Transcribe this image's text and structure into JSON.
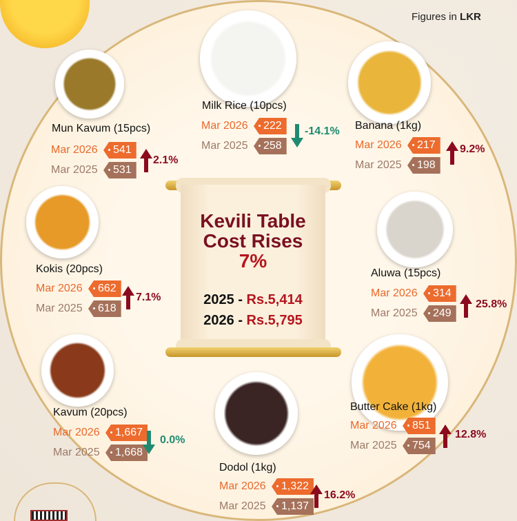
{
  "header": {
    "figures_prefix": "Figures in ",
    "figures_unit": "LKR"
  },
  "center": {
    "title_line1": "Kevili Table",
    "title_line2": "Cost Rises",
    "title_pct": "7%",
    "totals": [
      {
        "year": "2025 - ",
        "amount": "Rs.5,414"
      },
      {
        "year": "2026 - ",
        "amount": "Rs.5,795"
      }
    ]
  },
  "colors": {
    "price_2026": "#ec6b2d",
    "price_2025": "#a5715a",
    "increase": "#8b0a1e",
    "decrease": "#1f8a70",
    "title": "#7a1020"
  },
  "items": [
    {
      "name": "Mun Kavum (15pcs)",
      "label_2026": "Mar 2026",
      "price_2026": "541",
      "label_2025": "Mar 2025",
      "price_2025": "531",
      "change": "2.1%",
      "direction": "up",
      "icon": "arrow-up-icon",
      "food_color": "#9a7a2a"
    },
    {
      "name": "Milk Rice (10pcs)",
      "label_2026": "Mar 2026",
      "price_2026": "222",
      "label_2025": "Mar 2025",
      "price_2025": "258",
      "change": "-14.1%",
      "direction": "down",
      "icon": "arrow-down-icon",
      "food_color": "#f4f4f0"
    },
    {
      "name": "Banana (1kg)",
      "label_2026": "Mar 2026",
      "price_2026": "217",
      "label_2025": "Mar 2025",
      "price_2025": "198",
      "change": "9.2%",
      "direction": "up",
      "icon": "arrow-up-icon",
      "food_color": "#e9b53a"
    },
    {
      "name": "Kokis (20pcs)",
      "label_2026": "Mar 2026",
      "price_2026": "662",
      "label_2025": "Mar 2025",
      "price_2025": "618",
      "change": "7.1%",
      "direction": "up",
      "icon": "arrow-up-icon",
      "food_color": "#e79a28"
    },
    {
      "name": "Aluwa (15pcs)",
      "label_2026": "Mar 2026",
      "price_2026": "314",
      "label_2025": "Mar 2025",
      "price_2025": "249",
      "change": "25.8%",
      "direction": "up",
      "icon": "arrow-up-icon",
      "food_color": "#d9d4cc"
    },
    {
      "name": "Kavum (20pcs)",
      "label_2026": "Mar 2026",
      "price_2026": "1,667",
      "label_2025": "Mar 2025",
      "price_2025": "1,668",
      "change": "0.0%",
      "direction": "down",
      "icon": "arrow-down-icon",
      "food_color": "#8a3a1a"
    },
    {
      "name": "Dodol (1kg)",
      "label_2026": "Mar 2026",
      "price_2026": "1,322",
      "label_2025": "Mar 2025",
      "price_2025": "1,137",
      "change": "16.2%",
      "direction": "up",
      "icon": "arrow-up-icon",
      "food_color": "#3a2424"
    },
    {
      "name": "Butter Cake (1kg)",
      "label_2026": "Mar 2026",
      "price_2026": "851",
      "label_2025": "Mar 2025",
      "price_2025": "754",
      "change": "12.8%",
      "direction": "up",
      "icon": "arrow-up-icon",
      "food_color": "#f2b23a"
    }
  ]
}
